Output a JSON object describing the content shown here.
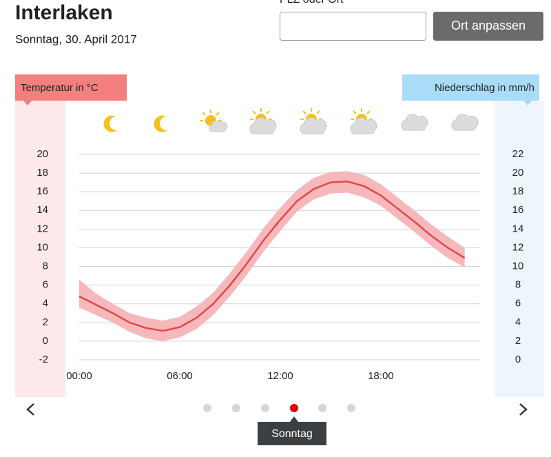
{
  "header": {
    "title": "Interlaken",
    "date": "Sonntag, 30. April 2017"
  },
  "form": {
    "label": "PLZ oder Ort",
    "button": "Ort anpassen"
  },
  "pager": {
    "label": "Sonntag"
  },
  "chart_data": {
    "type": "line",
    "ylabel": "Temperatur in °C",
    "y2label": "Niederschlag in mm/h",
    "x": [
      0,
      1,
      2,
      3,
      4,
      5,
      6,
      7,
      8,
      9,
      10,
      11,
      12,
      13,
      14,
      15,
      16,
      17,
      18,
      19,
      20,
      21,
      22,
      23
    ],
    "xlim": [
      0,
      24
    ],
    "xticks": [
      {
        "value": 0,
        "label": "00:00"
      },
      {
        "value": 6,
        "label": "06:00"
      },
      {
        "value": 12,
        "label": "12:00"
      },
      {
        "value": 18,
        "label": "18:00"
      }
    ],
    "ylim": [
      -2,
      20
    ],
    "yticks": [
      -2,
      0,
      2,
      4,
      6,
      8,
      10,
      12,
      14,
      16,
      18,
      20
    ],
    "y2lim": [
      0,
      22
    ],
    "y2ticks": [
      0,
      2,
      4,
      6,
      8,
      10,
      12,
      14,
      16,
      18,
      20,
      22
    ],
    "grid": true,
    "series": [
      {
        "color": "#e0484d",
        "band_color": "#f7b8bb",
        "values": [
          4.8,
          3.9,
          3.0,
          2.0,
          1.4,
          1.1,
          1.5,
          2.5,
          4.0,
          6.0,
          8.3,
          10.8,
          13.0,
          15.0,
          16.3,
          17.0,
          17.1,
          16.6,
          15.6,
          14.2,
          12.8,
          11.3,
          10.0,
          8.9
        ],
        "lower": [
          3.6,
          2.8,
          2.0,
          1.0,
          0.3,
          0.0,
          0.4,
          1.3,
          2.8,
          4.8,
          7.1,
          9.6,
          11.8,
          13.9,
          15.2,
          15.8,
          15.9,
          15.4,
          14.5,
          13.1,
          11.7,
          10.2,
          8.9,
          7.9
        ],
        "upper": [
          6.6,
          5.1,
          4.0,
          3.0,
          2.5,
          2.2,
          2.6,
          3.7,
          5.2,
          7.3,
          9.6,
          12.1,
          14.3,
          16.2,
          17.5,
          18.1,
          18.2,
          17.8,
          16.8,
          15.4,
          14.0,
          12.5,
          11.2,
          10.0
        ]
      }
    ]
  }
}
